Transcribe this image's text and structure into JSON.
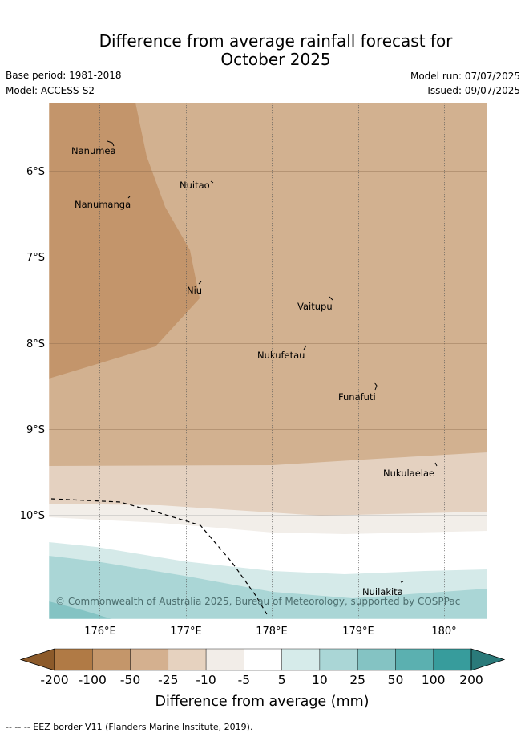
{
  "header": {
    "title_line1": "Difference from average rainfall forecast for",
    "title_line2": "October 2025",
    "base_period": "Base period: 1981-2018",
    "model": "Model: ACCESS-S2",
    "model_run": "Model run: 07/07/2025",
    "issued": "Issued: 09/07/2025"
  },
  "map": {
    "lat_labels": [
      "6°S",
      "7°S",
      "8°S",
      "9°S",
      "10°S"
    ],
    "lon_labels": [
      "176°E",
      "177°E",
      "178°E",
      "179°E",
      "180°"
    ],
    "islands": [
      {
        "name": "Nanumea"
      },
      {
        "name": "Nuitao"
      },
      {
        "name": "Nanumanga"
      },
      {
        "name": "Niu"
      },
      {
        "name": "Vaitupu"
      },
      {
        "name": "Nukufetau"
      },
      {
        "name": "Funafuti"
      },
      {
        "name": "Nukulaelae"
      },
      {
        "name": "Nuilakita"
      }
    ],
    "copyright": "© Commonwealth of Australia 2025, Bureau of Meteorology, supported by COSPPac"
  },
  "colorbar": {
    "title": "Difference from average (mm)",
    "tick_labels": [
      "-200",
      "-100",
      "-50",
      "-25",
      "-10",
      "-5",
      "5",
      "10",
      "25",
      "50",
      "100",
      "200"
    ],
    "colors": [
      "#8c5a2a",
      "#b07a45",
      "#c4966a",
      "#d4b08f",
      "#e6d2bf",
      "#f2ede8",
      "#ffffff",
      "#d6ebea",
      "#aad6d6",
      "#84c3c3",
      "#5bb0b0",
      "#379c9c",
      "#2a7a7a"
    ]
  },
  "footnote": "--  --  -- EEZ border V11 (Flanders Marine Institute, 2019)."
}
